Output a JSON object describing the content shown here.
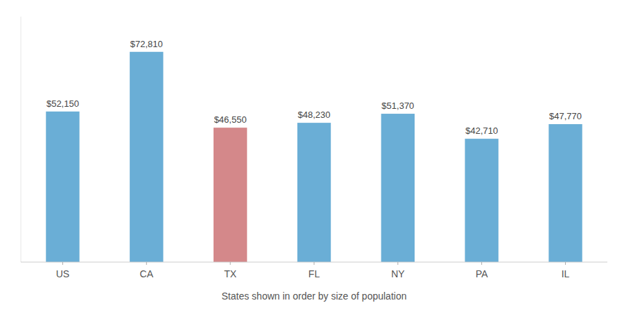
{
  "chart_data": {
    "type": "bar",
    "x_label": "States shown in order by size of population",
    "categories": [
      "US",
      "CA",
      "TX",
      "FL",
      "NY",
      "PA",
      "IL"
    ],
    "values": [
      52150,
      72810,
      46550,
      48230,
      51370,
      42710,
      47770
    ],
    "value_labels": [
      "$52,150",
      "$72,810",
      "$46,550",
      "$48,230",
      "$51,370",
      "$42,710",
      "$47,770"
    ],
    "colors": [
      "#6aaed6",
      "#6aaed6",
      "#d4888a",
      "#6aaed6",
      "#6aaed6",
      "#6aaed6",
      "#6aaed6"
    ],
    "ylim": [
      0,
      85000
    ],
    "grid": false,
    "data_labels": true,
    "tick_labels": "x"
  }
}
